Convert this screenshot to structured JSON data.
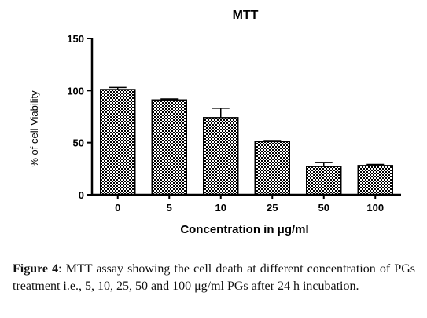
{
  "chart_data": {
    "type": "bar",
    "title": "MTT",
    "xlabel": "Concentration in μg/ml",
    "ylabel": "% of cell Viability",
    "categories": [
      "0",
      "5",
      "10",
      "25",
      "50",
      "100"
    ],
    "values": [
      101,
      91,
      74,
      51,
      27,
      28
    ],
    "errors": [
      2,
      1,
      9,
      1,
      4,
      1
    ],
    "ylim": [
      0,
      150
    ],
    "yticks": [
      "0",
      "50",
      "100",
      "150"
    ],
    "grid": false,
    "legend": "none",
    "bar_fill": "checkered black/white",
    "colors": {
      "bar_dark": "#000000",
      "bar_light": "#ffffff",
      "axis": "#000000"
    }
  },
  "caption": {
    "label": "Figure 4",
    "text": ": MTT assay showing the cell death at different concentration of PGs treatment i.e., 5, 10, 25, 50 and 100 μg/ml PGs after 24 h incubation."
  }
}
